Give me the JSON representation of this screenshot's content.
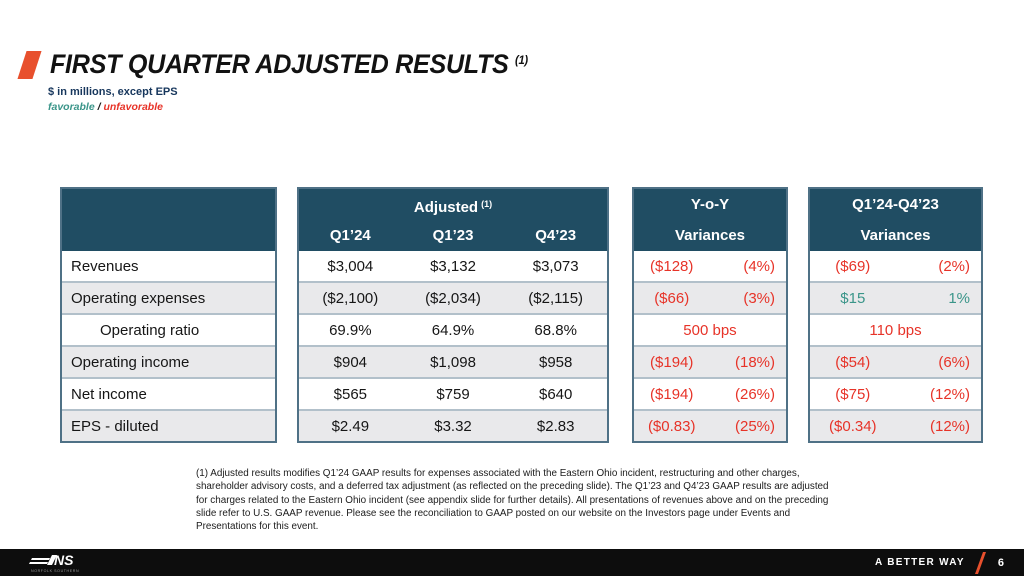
{
  "page": {
    "title": "FIRST QUARTER ADJUSTED RESULTS",
    "title_superscript": "(1)",
    "subtitle": "$ in millions, except EPS",
    "legend": {
      "favorable": "favorable",
      "separator": " / ",
      "unfavorable": "unfavorable"
    }
  },
  "colors": {
    "header_navy": "#204d63",
    "unfavorable_red": "#e73328",
    "favorable_teal": "#3a9589",
    "accent_orange": "#e8502d",
    "row_alt_gray": "#e9e9eb"
  },
  "table": {
    "adjusted_header": "Adjusted",
    "adjusted_header_superscript": "(1)",
    "adjusted_columns": [
      "Q1’24",
      "Q1’23",
      "Q4’23"
    ],
    "yoy_header_line1": "Y-o-Y",
    "yoy_header_line2": "Variances",
    "q4_header_line1": "Q1’24-Q4’23",
    "q4_header_line2": "Variances",
    "rows": [
      {
        "label": "Revenues",
        "indent": false,
        "values": [
          "$3,004",
          "$3,132",
          "$3,073"
        ],
        "yoy": {
          "value": "($128)",
          "pct": "(4%)",
          "tone": "unfavorable"
        },
        "q4": {
          "value": "($69)",
          "pct": "(2%)",
          "tone": "unfavorable"
        }
      },
      {
        "label": "Operating expenses",
        "indent": false,
        "values": [
          "($2,100)",
          "($2,034)",
          "($2,115)"
        ],
        "yoy": {
          "value": "($66)",
          "pct": "(3%)",
          "tone": "unfavorable"
        },
        "q4": {
          "value": "$15",
          "pct": "1%",
          "tone": "favorable"
        }
      },
      {
        "label": "Operating ratio",
        "indent": true,
        "values": [
          "69.9%",
          "64.9%",
          "68.8%"
        ],
        "yoy": {
          "single": "500 bps",
          "tone": "unfavorable"
        },
        "q4": {
          "single": "110 bps",
          "tone": "unfavorable"
        }
      },
      {
        "label": "Operating income",
        "indent": false,
        "values": [
          "$904",
          "$1,098",
          "$958"
        ],
        "yoy": {
          "value": "($194)",
          "pct": "(18%)",
          "tone": "unfavorable"
        },
        "q4": {
          "value": "($54)",
          "pct": "(6%)",
          "tone": "unfavorable"
        }
      },
      {
        "label": "Net income",
        "indent": false,
        "values": [
          "$565",
          "$759",
          "$640"
        ],
        "yoy": {
          "value": "($194)",
          "pct": "(26%)",
          "tone": "unfavorable"
        },
        "q4": {
          "value": "($75)",
          "pct": "(12%)",
          "tone": "unfavorable"
        }
      },
      {
        "label": "EPS - diluted",
        "indent": false,
        "values": [
          "$2.49",
          "$3.32",
          "$2.83"
        ],
        "yoy": {
          "value": "($0.83)",
          "pct": "(25%)",
          "tone": "unfavorable"
        },
        "q4": {
          "value": "($0.34)",
          "pct": "(12%)",
          "tone": "unfavorable"
        }
      }
    ]
  },
  "footnote": "(1) Adjusted results modifies Q1’24 GAAP results for expenses associated with the Eastern Ohio incident, restructuring and other charges, shareholder advisory costs, and a deferred tax adjustment (as reflected on the preceding slide).  The Q1’23 and Q4’23 GAAP results are adjusted for charges related to the Eastern Ohio incident (see appendix slide for further details).  All presentations of revenues above and on the preceding slide refer to U.S. GAAP revenue.  Please see the reconciliation to GAAP posted on our website on the Investors page under Events and Presentations for this event.",
  "footer": {
    "logo_ns": "NS",
    "logo_subtext": "NORFOLK SOUTHERN",
    "tagline": "A BETTER WAY",
    "page_number": "6"
  }
}
